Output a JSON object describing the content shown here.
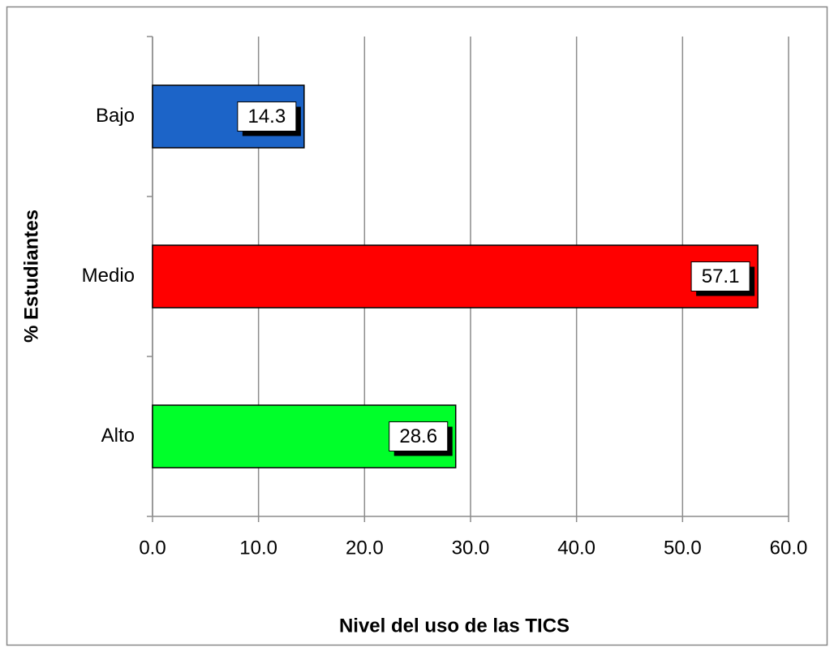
{
  "chart_data": {
    "type": "bar",
    "orientation": "horizontal",
    "categories": [
      "Bajo",
      "Medio",
      "Alto"
    ],
    "values": [
      14.3,
      57.1,
      28.6
    ],
    "colors": [
      "#1c64c8",
      "#ff0000",
      "#00ff2a"
    ],
    "x_label": "Nivel del uso de las TICS",
    "y_label": "% Estudiantes",
    "xlim": [
      0,
      60
    ],
    "xticks": [
      {
        "value": 0,
        "label": "0.0"
      },
      {
        "value": 10,
        "label": "10.0"
      },
      {
        "value": 20,
        "label": "20.0"
      },
      {
        "value": 30,
        "label": "30.0"
      },
      {
        "value": 40,
        "label": "40.0"
      },
      {
        "value": 50,
        "label": "50.0"
      },
      {
        "value": 60,
        "label": "60.0"
      }
    ],
    "grid": true,
    "data_labels": true
  }
}
